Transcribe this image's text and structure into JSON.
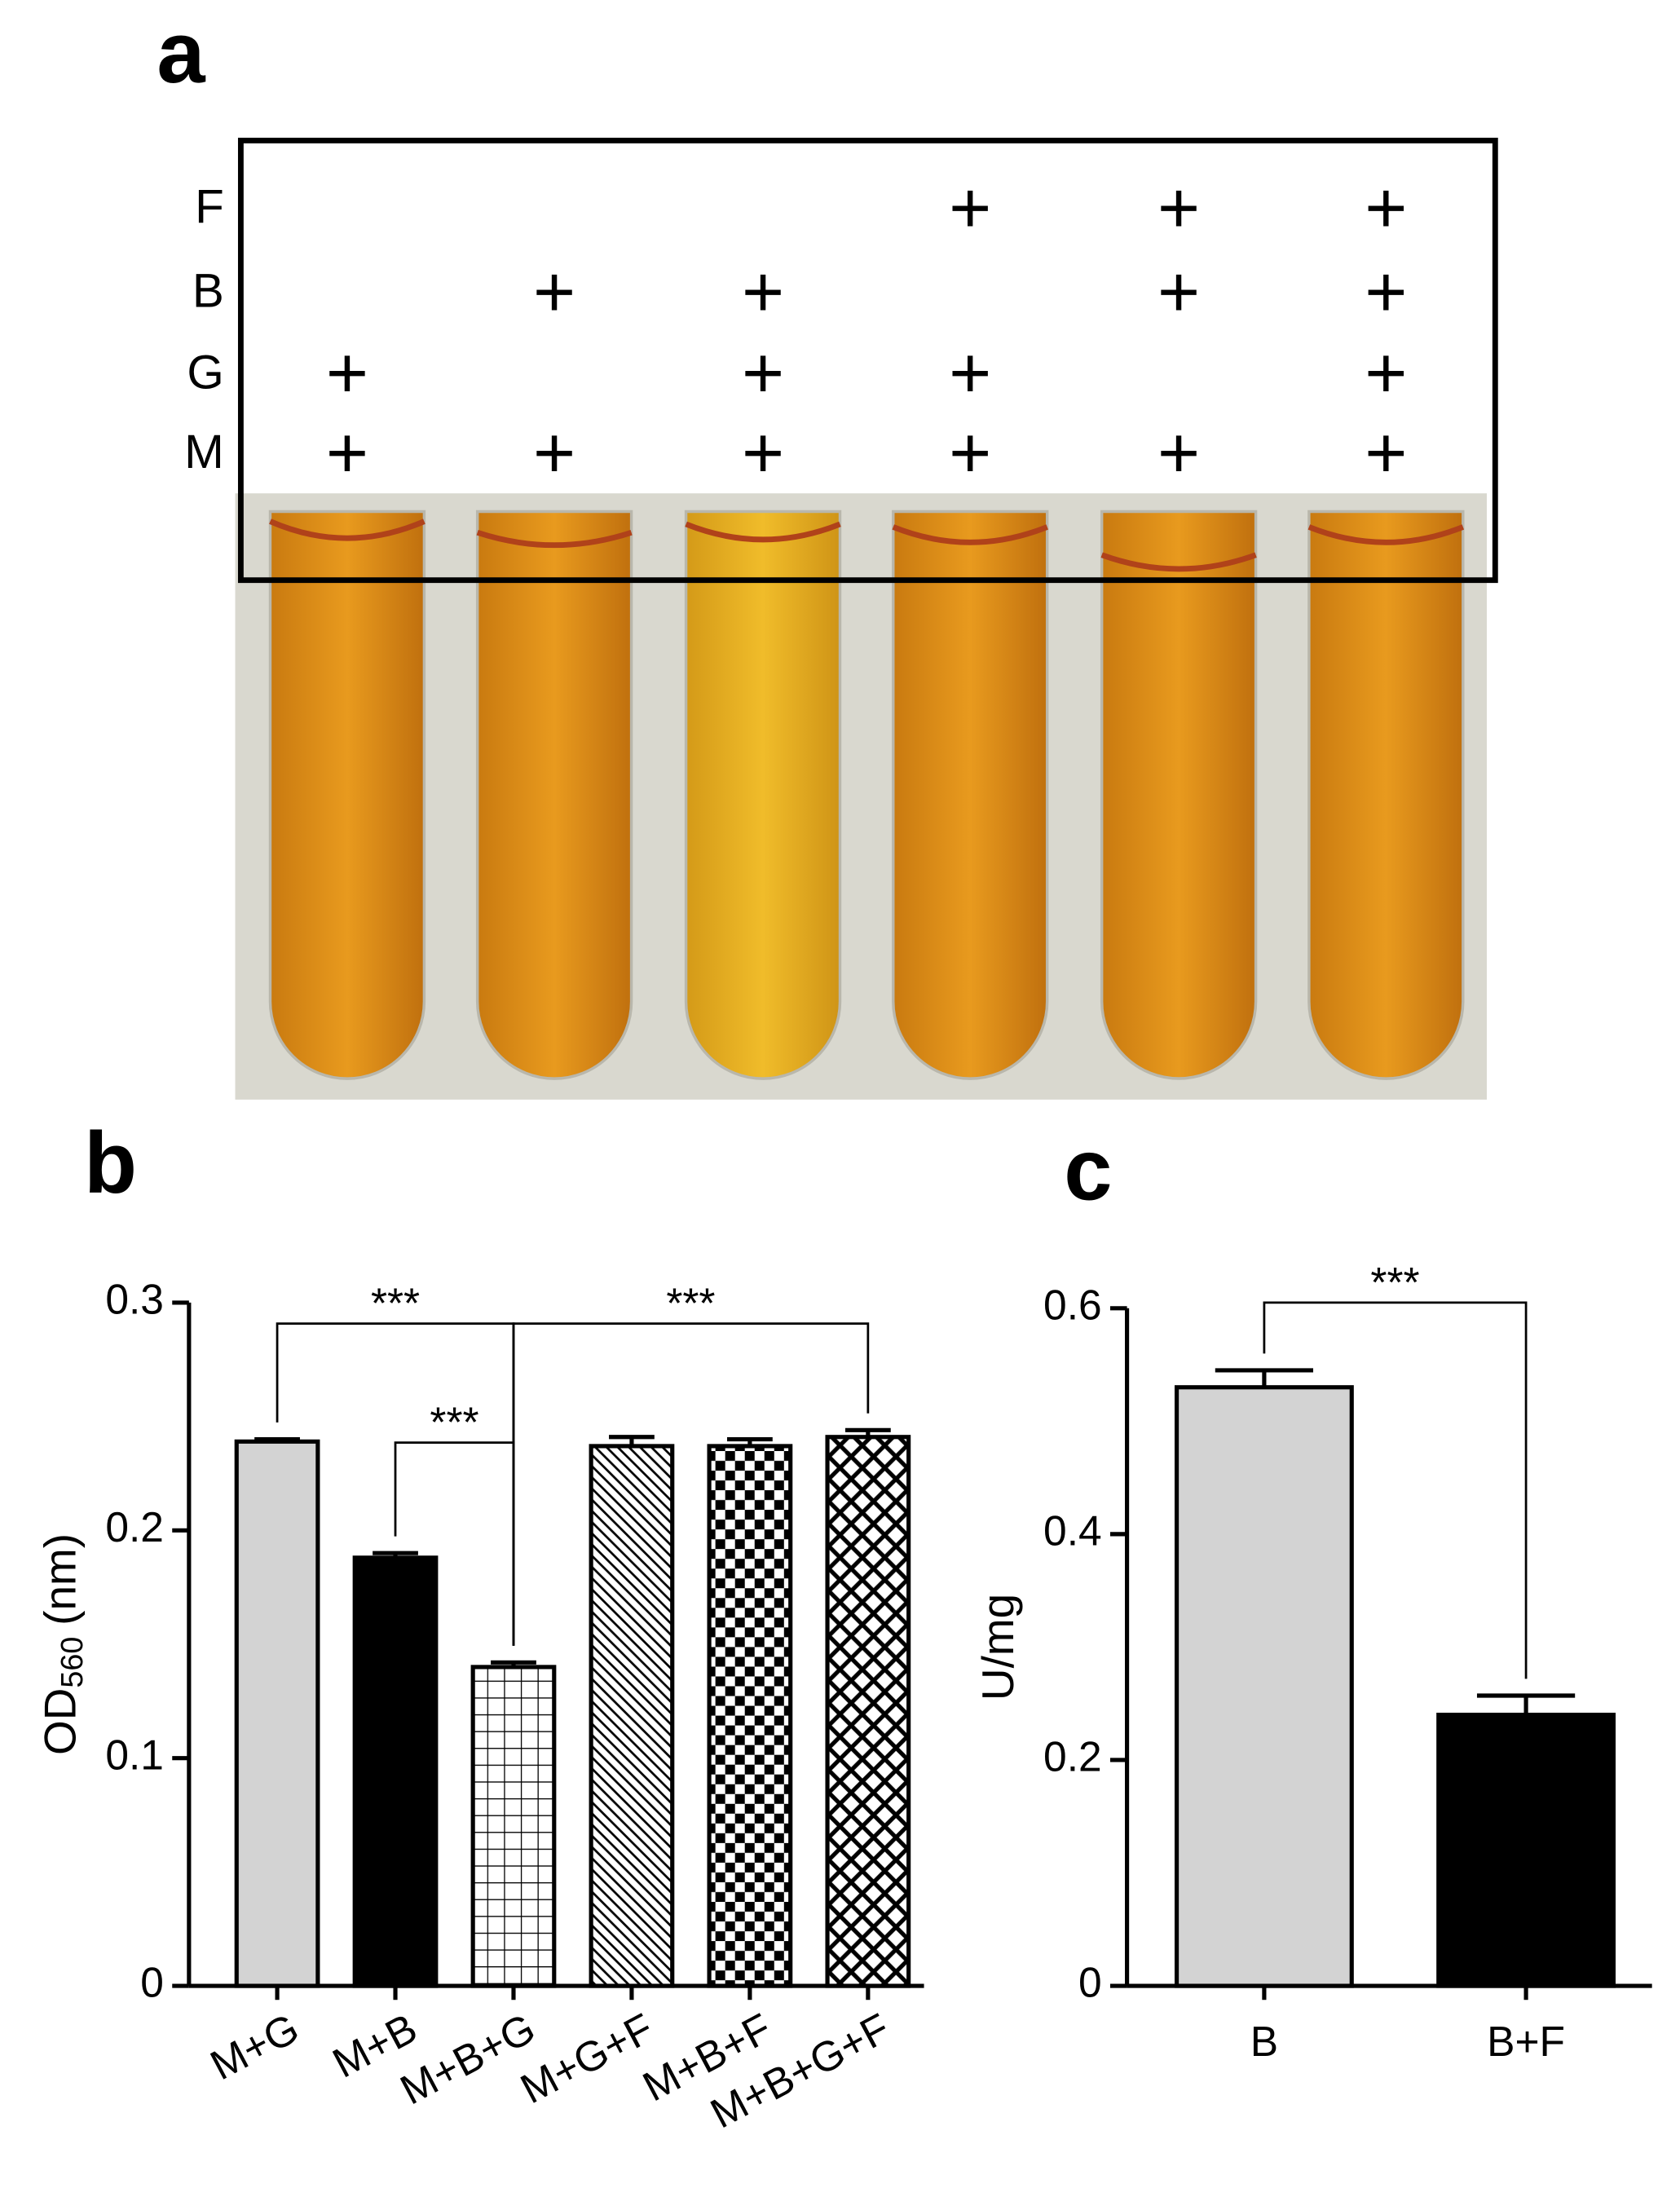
{
  "panel_labels": [
    "a",
    "b",
    "c"
  ],
  "treatment_grid": {
    "rows": [
      {
        "label": "F",
        "marks": [
          null,
          null,
          null,
          "+",
          "+",
          "+"
        ]
      },
      {
        "label": "B",
        "marks": [
          null,
          "+",
          "+",
          null,
          "+",
          "+"
        ]
      },
      {
        "label": "G",
        "marks": [
          "+",
          null,
          "+",
          "+",
          null,
          "+"
        ]
      },
      {
        "label": "M",
        "marks": [
          "+",
          "+",
          "+",
          "+",
          "+",
          "+"
        ]
      }
    ]
  },
  "chart_data": [
    {
      "type": "bar",
      "y_label": {
        "main": "OD",
        "subscript": "560",
        "unit": "(nm)"
      },
      "categories": [
        "M+G",
        "M+B",
        "M+B+G",
        "M+G+F",
        "M+B+F",
        "M+B+G+F"
      ],
      "values": [
        0.239,
        0.188,
        0.14,
        0.237,
        0.237,
        0.241
      ],
      "errors": [
        0.001,
        0.002,
        0.002,
        0.004,
        0.003,
        0.003
      ],
      "fills": [
        "#d3d3d3",
        "#000000",
        "grid",
        "diagonal",
        "checker",
        "crosshatch"
      ],
      "ylim": [
        0,
        0.3
      ],
      "yticks": [
        0,
        0.1,
        0.2,
        0.3
      ],
      "annotations": [
        {
          "text": "***",
          "between": [
            "M+G",
            "M+B+G"
          ]
        },
        {
          "text": "***",
          "between": [
            "M+B",
            "M+B+G"
          ]
        },
        {
          "text": "***",
          "between": [
            "M+B+G",
            "M+B+G+F"
          ]
        }
      ]
    },
    {
      "type": "bar",
      "y_label": {
        "main": "U/mg"
      },
      "categories": [
        "B",
        "B+F"
      ],
      "values": [
        0.53,
        0.24
      ],
      "errors": [
        0.015,
        0.017
      ],
      "fills": [
        "#d3d3d3",
        "#000000"
      ],
      "ylim": [
        0,
        0.6
      ],
      "yticks": [
        0,
        0.2,
        0.4,
        0.6
      ],
      "annotations": [
        {
          "text": "***",
          "between": [
            "B",
            "B+F"
          ]
        }
      ]
    }
  ]
}
